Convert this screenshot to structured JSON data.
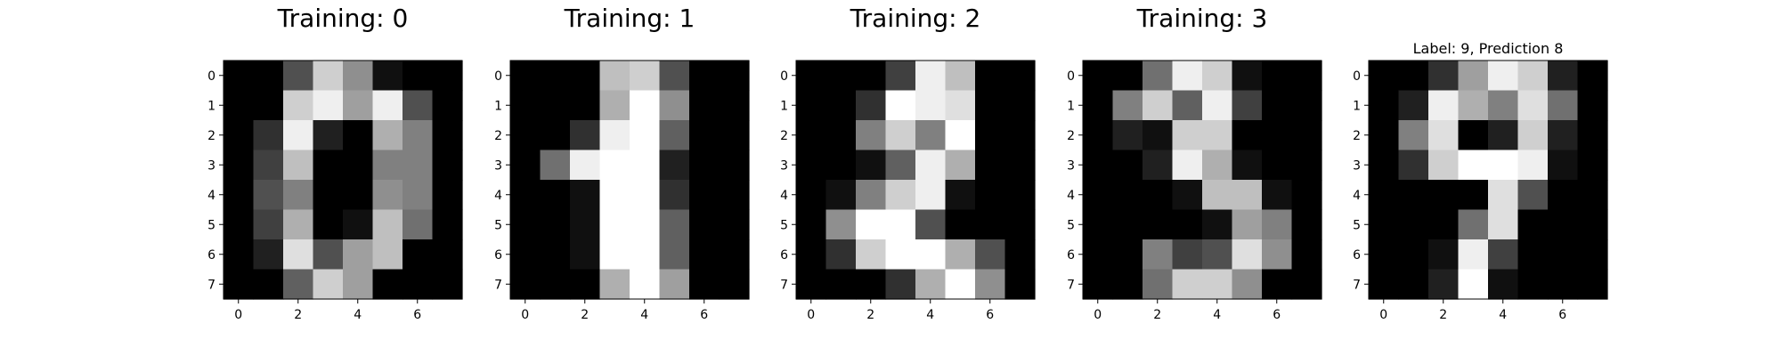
{
  "chart_data": [
    {
      "type": "heatmap",
      "title": "Training: 0",
      "colormap": "gray",
      "vmin": 0,
      "vmax": 16,
      "xticks": [
        "0",
        "2",
        "4",
        "6"
      ],
      "yticks": [
        "0",
        "1",
        "2",
        "3",
        "4",
        "5",
        "6",
        "7"
      ],
      "values": [
        [
          0,
          0,
          5,
          13,
          9,
          1,
          0,
          0
        ],
        [
          0,
          0,
          13,
          15,
          10,
          15,
          5,
          0
        ],
        [
          0,
          3,
          15,
          2,
          0,
          11,
          8,
          0
        ],
        [
          0,
          4,
          12,
          0,
          0,
          8,
          8,
          0
        ],
        [
          0,
          5,
          8,
          0,
          0,
          9,
          8,
          0
        ],
        [
          0,
          4,
          11,
          0,
          1,
          12,
          7,
          0
        ],
        [
          0,
          2,
          14,
          5,
          10,
          12,
          0,
          0
        ],
        [
          0,
          0,
          6,
          13,
          10,
          0,
          0,
          0
        ]
      ]
    },
    {
      "type": "heatmap",
      "title": "Training: 1",
      "colormap": "gray",
      "vmin": 0,
      "vmax": 16,
      "xticks": [
        "0",
        "2",
        "4",
        "6"
      ],
      "yticks": [
        "0",
        "1",
        "2",
        "3",
        "4",
        "5",
        "6",
        "7"
      ],
      "values": [
        [
          0,
          0,
          0,
          12,
          13,
          5,
          0,
          0
        ],
        [
          0,
          0,
          0,
          11,
          16,
          9,
          0,
          0
        ],
        [
          0,
          0,
          3,
          15,
          16,
          6,
          0,
          0
        ],
        [
          0,
          7,
          15,
          16,
          16,
          2,
          0,
          0
        ],
        [
          0,
          0,
          1,
          16,
          16,
          3,
          0,
          0
        ],
        [
          0,
          0,
          1,
          16,
          16,
          6,
          0,
          0
        ],
        [
          0,
          0,
          1,
          16,
          16,
          6,
          0,
          0
        ],
        [
          0,
          0,
          0,
          11,
          16,
          10,
          0,
          0
        ]
      ]
    },
    {
      "type": "heatmap",
      "title": "Training: 2",
      "colormap": "gray",
      "vmin": 0,
      "vmax": 16,
      "xticks": [
        "0",
        "2",
        "4",
        "6"
      ],
      "yticks": [
        "0",
        "1",
        "2",
        "3",
        "4",
        "5",
        "6",
        "7"
      ],
      "values": [
        [
          0,
          0,
          0,
          4,
          15,
          12,
          0,
          0
        ],
        [
          0,
          0,
          3,
          16,
          15,
          14,
          0,
          0
        ],
        [
          0,
          0,
          8,
          13,
          8,
          16,
          0,
          0
        ],
        [
          0,
          0,
          1,
          6,
          15,
          11,
          0,
          0
        ],
        [
          0,
          1,
          8,
          13,
          15,
          1,
          0,
          0
        ],
        [
          0,
          9,
          16,
          16,
          5,
          0,
          0,
          0
        ],
        [
          0,
          3,
          13,
          16,
          16,
          11,
          5,
          0
        ],
        [
          0,
          0,
          0,
          3,
          11,
          16,
          9,
          0
        ]
      ]
    },
    {
      "type": "heatmap",
      "title": "Training: 3",
      "colormap": "gray",
      "vmin": 0,
      "vmax": 16,
      "xticks": [
        "0",
        "2",
        "4",
        "6"
      ],
      "yticks": [
        "0",
        "1",
        "2",
        "3",
        "4",
        "5",
        "6",
        "7"
      ],
      "values": [
        [
          0,
          0,
          7,
          15,
          13,
          1,
          0,
          0
        ],
        [
          0,
          8,
          13,
          6,
          15,
          4,
          0,
          0
        ],
        [
          0,
          2,
          1,
          13,
          13,
          0,
          0,
          0
        ],
        [
          0,
          0,
          2,
          15,
          11,
          1,
          0,
          0
        ],
        [
          0,
          0,
          0,
          1,
          12,
          12,
          1,
          0
        ],
        [
          0,
          0,
          0,
          0,
          1,
          10,
          8,
          0
        ],
        [
          0,
          0,
          8,
          4,
          5,
          14,
          9,
          0
        ],
        [
          0,
          0,
          7,
          13,
          13,
          9,
          0,
          0
        ]
      ]
    },
    {
      "type": "heatmap",
      "title": "Label: 9, Prediction 8",
      "colormap": "gray",
      "vmin": 0,
      "vmax": 16,
      "xticks": [
        "0",
        "2",
        "4",
        "6"
      ],
      "yticks": [
        "0",
        "1",
        "2",
        "3",
        "4",
        "5",
        "6",
        "7"
      ],
      "values": [
        [
          0,
          0,
          3,
          10,
          15,
          13,
          2,
          0
        ],
        [
          0,
          2,
          15,
          11,
          8,
          14,
          7,
          0
        ],
        [
          0,
          8,
          14,
          0,
          2,
          13,
          2,
          0
        ],
        [
          0,
          3,
          13,
          16,
          16,
          15,
          1,
          0
        ],
        [
          0,
          0,
          0,
          0,
          14,
          5,
          0,
          0
        ],
        [
          0,
          0,
          0,
          7,
          14,
          0,
          0,
          0
        ],
        [
          0,
          0,
          1,
          15,
          4,
          0,
          0,
          0
        ],
        [
          0,
          0,
          2,
          16,
          1,
          0,
          0,
          0
        ]
      ]
    }
  ]
}
